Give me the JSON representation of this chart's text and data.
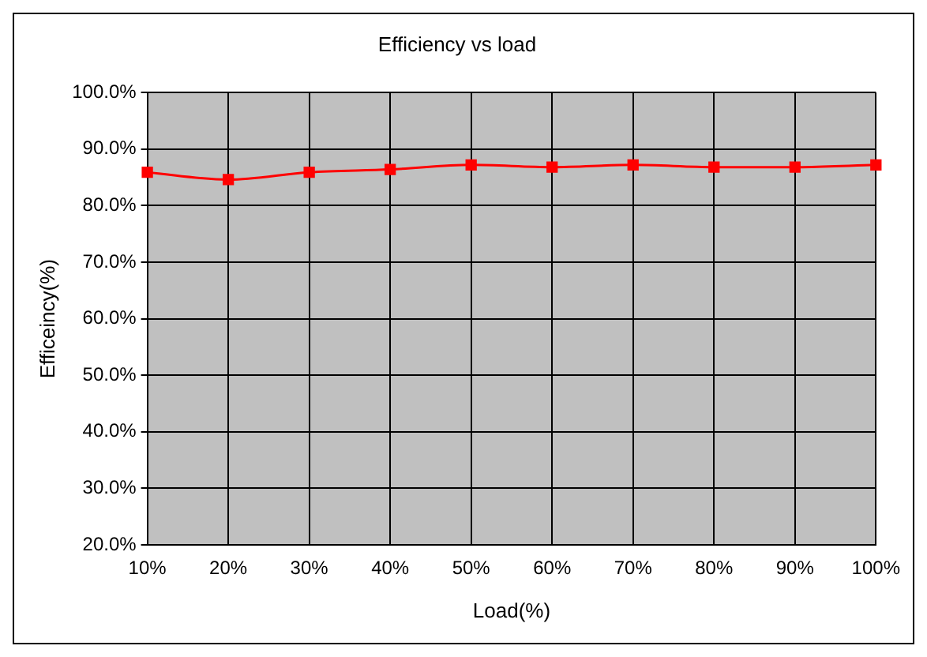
{
  "chart_data": {
    "type": "line",
    "title": "Efficiency vs load",
    "xlabel": "Load(%)",
    "ylabel": "Efficeincy(%)",
    "categories": [
      "10%",
      "20%",
      "30%",
      "40%",
      "50%",
      "60%",
      "70%",
      "80%",
      "90%",
      "100%"
    ],
    "series": [
      {
        "color": "#ff0000",
        "values": [
          85.9,
          84.6,
          85.9,
          86.4,
          87.2,
          86.8,
          87.2,
          86.8,
          86.8,
          87.2
        ]
      }
    ],
    "ylim": [
      20,
      100
    ],
    "yticks": [
      {
        "value": 20,
        "label": "20.0%"
      },
      {
        "value": 30,
        "label": "30.0%"
      },
      {
        "value": 40,
        "label": "40.0%"
      },
      {
        "value": 50,
        "label": "50.0%"
      },
      {
        "value": 60,
        "label": "60.0%"
      },
      {
        "value": 70,
        "label": "70.0%"
      },
      {
        "value": 80,
        "label": "80.0%"
      },
      {
        "value": 90,
        "label": "90.0%"
      },
      {
        "value": 100,
        "label": "100.0%"
      }
    ],
    "grid": true,
    "legend": false,
    "marker": "square",
    "line_style": "solid"
  }
}
